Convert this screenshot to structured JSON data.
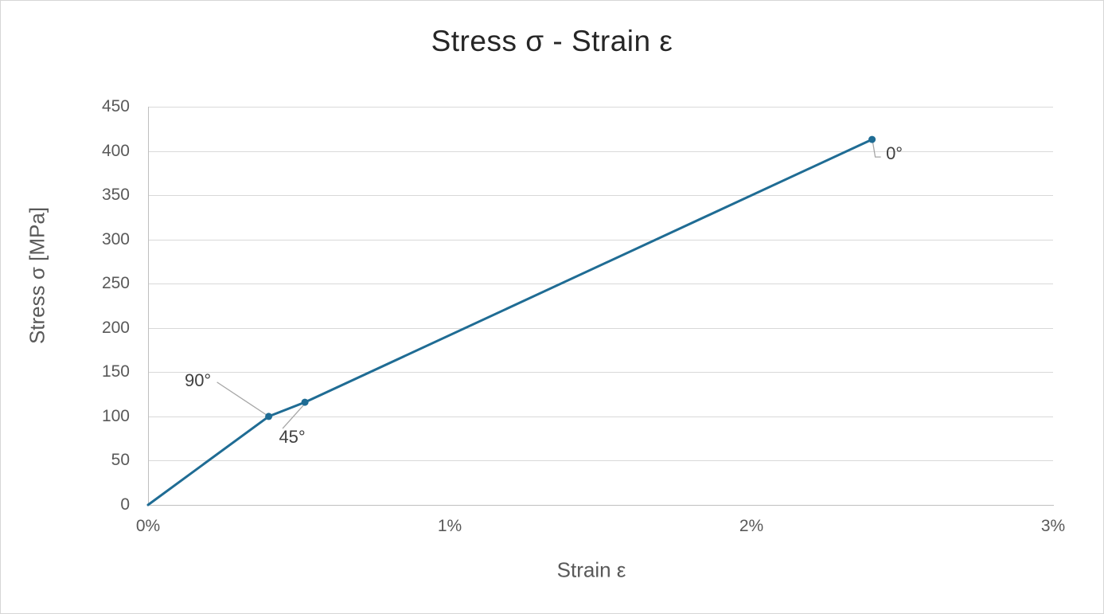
{
  "window": {
    "background": "#FFFFFF",
    "border_color": "#D6D6D6"
  },
  "chart_data": {
    "type": "line",
    "title": "Stress σ - Strain ε",
    "xlabel": "Strain ε",
    "ylabel": "Stress σ [MPa]",
    "x_unit": "percent strain",
    "xlim": [
      0,
      3
    ],
    "ylim": [
      0,
      450
    ],
    "x_ticks": [
      "0%",
      "1%",
      "2%",
      "3%"
    ],
    "y_ticks": [
      0,
      50,
      100,
      150,
      200,
      250,
      300,
      350,
      400,
      450
    ],
    "grid": "horizontal-only",
    "legend": "none",
    "series": [
      {
        "name": "stress-strain curve",
        "color": "#1F6C94",
        "marker": "circle",
        "points": [
          {
            "strain_pct": 0,
            "stress_mpa": 0
          },
          {
            "strain_pct": 0.4,
            "stress_mpa": 100,
            "label": "90°",
            "label_position": "upper-left"
          },
          {
            "strain_pct": 0.52,
            "stress_mpa": 116,
            "label": "45°",
            "label_position": "below-left"
          },
          {
            "strain_pct": 2.4,
            "stress_mpa": 413,
            "label": "0°",
            "label_position": "lower-right"
          }
        ]
      }
    ],
    "annotations": [
      "90°",
      "45°",
      "0°"
    ]
  },
  "styles": {
    "title_color": "#262626",
    "axis_text_color": "#595959",
    "data_label_color": "#404040",
    "gridline_color": "#D9D9D9",
    "axis_line_color": "#BFBFBF",
    "leader_line_color": "#A6A6A6"
  }
}
